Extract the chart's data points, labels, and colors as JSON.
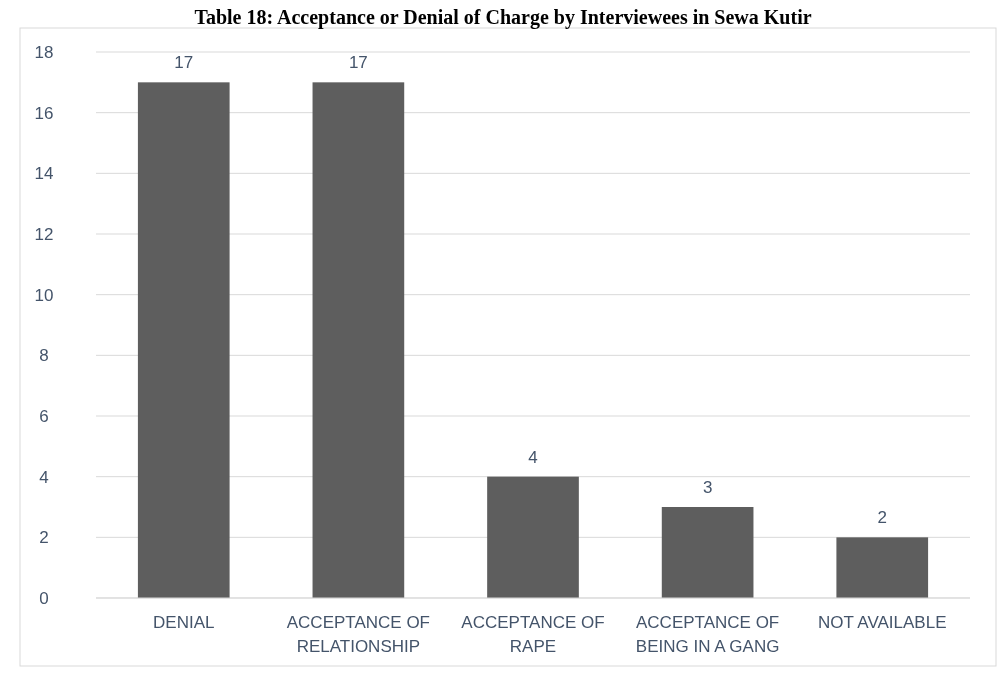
{
  "chart_data": {
    "type": "bar",
    "title": "Table 18: Acceptance or Denial of Charge by Interviewees in Sewa Kutir",
    "categories": [
      "DENIAL",
      "ACCEPTANCE OF RELATIONSHIP",
      "ACCEPTANCE OF RAPE",
      "ACCEPTANCE OF BEING IN A GANG",
      "NOT AVAILABLE"
    ],
    "values": [
      17,
      17,
      4,
      3,
      2
    ],
    "color": "#5e5e5e",
    "ylim": [
      0,
      18
    ],
    "yticks": [
      0,
      2,
      4,
      6,
      8,
      10,
      12,
      14,
      16,
      18
    ],
    "grid": "y",
    "data_labels": true
  }
}
